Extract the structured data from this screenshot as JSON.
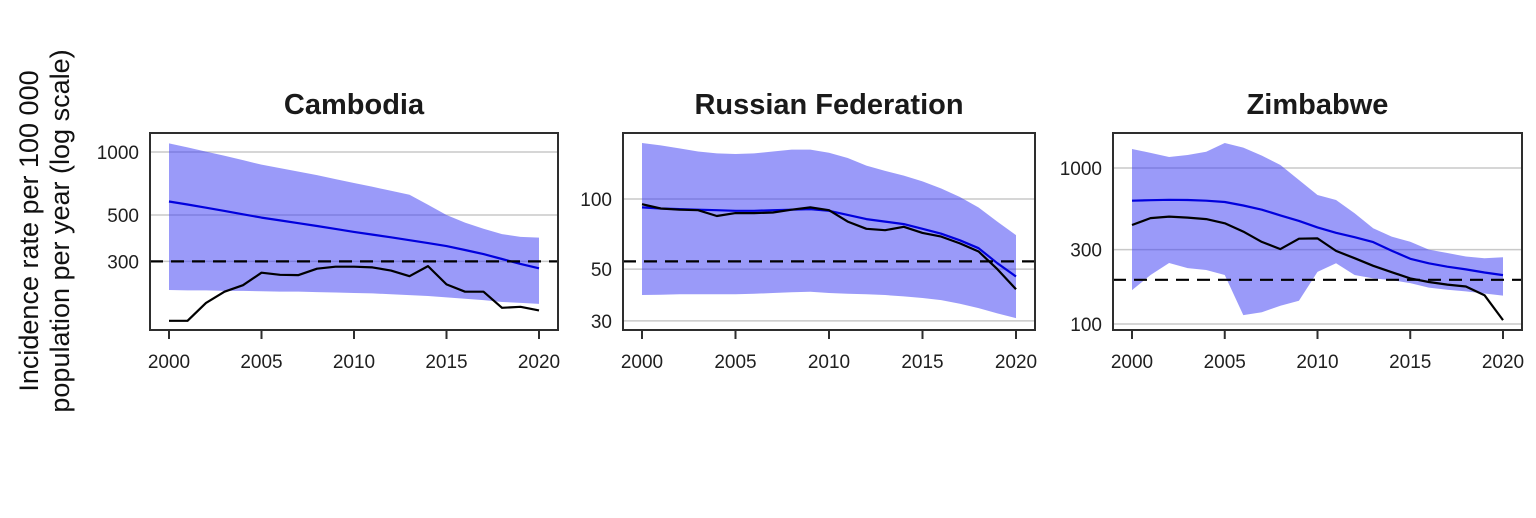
{
  "figure": {
    "y_axis_label_lines": [
      "Incidence rate per 100 000",
      "population per year (log scale)"
    ],
    "background_color": "#ffffff"
  },
  "style": {
    "band_color": "rgba(62,62,243,0.52)",
    "estimate_line_color": "#0101dd",
    "notification_line_color": "#000000",
    "target_line_color": "#000000",
    "gridline_color": "#c9c9c9",
    "border_color": "#2e2e2e",
    "tick_color": "#2e2e2e",
    "tick_label_color": "#1f1f1f",
    "title_color": "#1a1a1a"
  },
  "chart_data": [
    {
      "type": "line",
      "title": "Cambodia",
      "log_scale": true,
      "x": [
        2000,
        2001,
        2002,
        2003,
        2004,
        2005,
        2006,
        2007,
        2008,
        2009,
        2010,
        2011,
        2012,
        2013,
        2014,
        2015,
        2016,
        2017,
        2018,
        2019,
        2020
      ],
      "xticks": [
        2000,
        2005,
        2010,
        2015,
        2020
      ],
      "yticks": [
        1000,
        500,
        300
      ],
      "ylim": [
        141,
        1233
      ],
      "dashed_reference_value": 300,
      "series": [
        {
          "name": "estimated-incidence",
          "color_role": "estimate",
          "values": [
            580,
            561,
            542,
            523,
            504,
            486,
            471,
            457,
            443,
            429,
            415,
            403,
            391,
            379,
            367,
            355,
            340,
            325,
            308,
            292,
            278
          ]
        },
        {
          "name": "notified-cases",
          "color_role": "notifications",
          "values": [
            156,
            156,
            190,
            215,
            231,
            265,
            259,
            258,
            277,
            283,
            283,
            281,
            271,
            255,
            285,
            233,
            215,
            215,
            180,
            182,
            175
          ]
        }
      ],
      "band": {
        "name": "uncertainty-interval",
        "hi": [
          1100,
          1052,
          1005,
          960,
          915,
          870,
          838,
          806,
          775,
          742,
          711,
          682,
          653,
          625,
          560,
          500,
          460,
          430,
          405,
          393,
          390
        ],
        "lo": [
          219,
          218,
          218,
          217,
          217,
          216,
          215,
          215,
          214,
          213,
          212,
          211,
          209,
          207,
          205,
          202,
          199,
          196,
          192,
          190,
          188
        ]
      }
    },
    {
      "type": "line",
      "title": "Russian Federation",
      "log_scale": true,
      "x": [
        2000,
        2001,
        2002,
        2003,
        2004,
        2005,
        2006,
        2007,
        2008,
        2009,
        2010,
        2011,
        2012,
        2013,
        2014,
        2015,
        2016,
        2017,
        2018,
        2019,
        2020
      ],
      "xticks": [
        2000,
        2005,
        2010,
        2015,
        2020
      ],
      "yticks": [
        100,
        50,
        30
      ],
      "ylim": [
        27.4,
        192
      ],
      "dashed_reference_value": 54,
      "series": [
        {
          "name": "estimated-incidence",
          "color_role": "estimate",
          "values": [
            92,
            91,
            90.5,
            90,
            89.5,
            89,
            89,
            89.5,
            90,
            90.5,
            89,
            85.5,
            82,
            80,
            78,
            74.5,
            71,
            66.5,
            61.5,
            53,
            46.5
          ]
        },
        {
          "name": "notified-cases",
          "color_role": "notifications",
          "values": [
            95,
            91,
            90,
            89.5,
            84.5,
            87,
            87,
            87.5,
            90,
            92,
            89.5,
            80,
            74.5,
            73.5,
            76,
            71.5,
            69,
            64.5,
            59.5,
            50,
            41
          ]
        }
      ],
      "band": {
        "name": "uncertainty-interval",
        "hi": [
          174,
          170,
          165,
          160,
          157,
          156,
          157,
          160,
          163,
          163,
          158,
          150,
          139,
          132,
          126,
          119,
          111,
          102,
          92,
          80,
          70
        ],
        "lo": [
          38.7,
          38.8,
          39,
          39,
          39,
          39,
          39.2,
          39.5,
          39.8,
          40,
          39.5,
          39.2,
          39,
          38.7,
          38.2,
          37.6,
          36.8,
          35.5,
          34,
          32.3,
          30.8
        ]
      }
    },
    {
      "type": "line",
      "title": "Zimbabwe",
      "log_scale": true,
      "x": [
        2000,
        2001,
        2002,
        2003,
        2004,
        2005,
        2006,
        2007,
        2008,
        2009,
        2010,
        2011,
        2012,
        2013,
        2014,
        2015,
        2016,
        2017,
        2018,
        2019,
        2020
      ],
      "xticks": [
        2000,
        2005,
        2010,
        2015,
        2020
      ],
      "yticks": [
        1000,
        300,
        100
      ],
      "ylim": [
        91.6,
        1675
      ],
      "dashed_reference_value": 192,
      "series": [
        {
          "name": "estimated-incidence",
          "color_role": "estimate",
          "values": [
            617,
            622,
            625,
            623,
            617,
            605,
            575,
            540,
            497,
            458,
            416,
            384,
            360,
            335,
            295,
            262,
            245,
            233,
            224,
            214,
            206
          ]
        },
        {
          "name": "notified-cases",
          "color_role": "notifications",
          "values": [
            431,
            477,
            488,
            481,
            470,
            442,
            391,
            336,
            302,
            352,
            354,
            294,
            264,
            236,
            215,
            196,
            186,
            179,
            174,
            153,
            106
          ]
        }
      ],
      "band": {
        "name": "uncertainty-interval",
        "hi": [
          1324,
          1250,
          1176,
          1210,
          1270,
          1446,
          1350,
          1200,
          1045,
          838,
          671,
          623,
          513,
          411,
          363,
          337,
          300,
          285,
          271,
          264,
          268
        ],
        "lo": [
          165,
          206,
          246,
          228,
          222,
          206,
          114,
          119,
          131,
          141,
          216,
          245,
          206,
          196,
          191,
          183,
          171,
          166,
          162,
          157,
          152
        ]
      }
    }
  ]
}
